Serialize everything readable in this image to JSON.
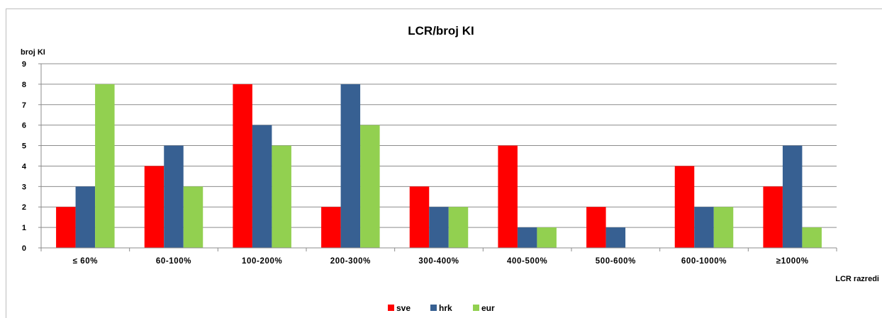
{
  "chart_data": {
    "type": "bar",
    "title": "LCR/broj KI",
    "ylabel": "broj KI",
    "xlabel": "LCR razredi",
    "ylim": [
      0,
      9
    ],
    "yticks": [
      "0",
      "1",
      "2",
      "3",
      "4",
      "5",
      "6",
      "7",
      "8",
      "9"
    ],
    "categories": [
      "≤ 60%",
      "60-100%",
      "100-200%",
      "200-300%",
      "300-400%",
      "400-500%",
      "500-600%",
      "600-1000%",
      "≥1000%"
    ],
    "series": [
      {
        "name": "sve",
        "color": "#ff0000",
        "values": [
          2,
          4,
          8,
          2,
          3,
          5,
          2,
          4,
          3
        ]
      },
      {
        "name": "hrk",
        "color": "#376092",
        "values": [
          3,
          5,
          6,
          8,
          2,
          1,
          1,
          2,
          5
        ]
      },
      {
        "name": "eur",
        "color": "#92d050",
        "values": [
          8,
          3,
          5,
          6,
          2,
          1,
          0,
          2,
          1
        ]
      }
    ],
    "grid": true,
    "legend": "bottom"
  }
}
